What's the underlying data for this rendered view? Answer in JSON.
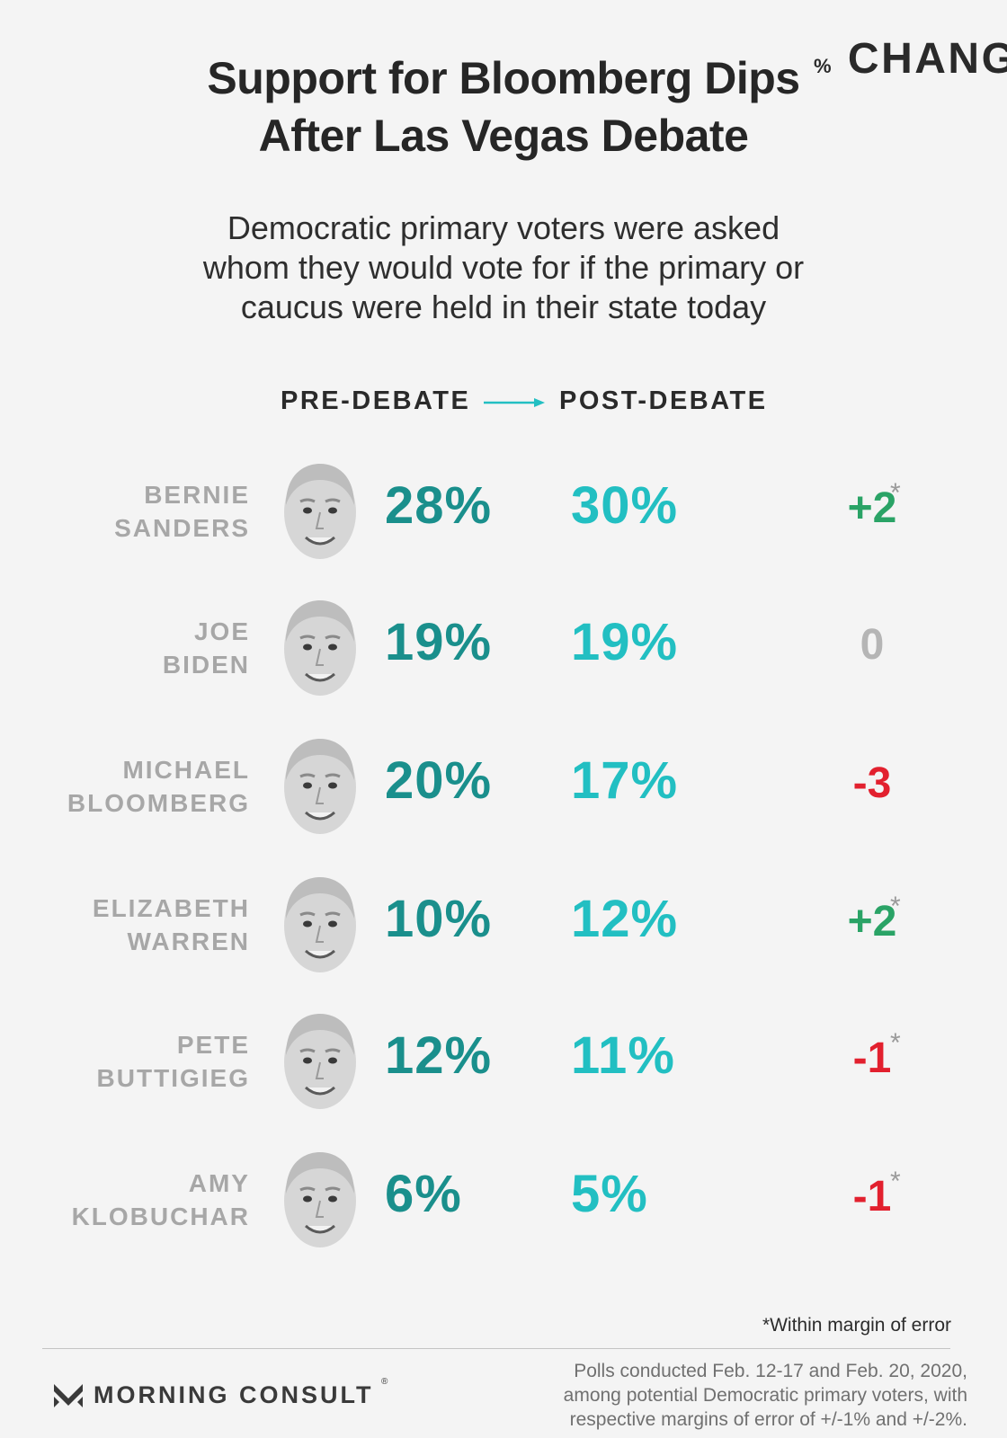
{
  "title_line1": "Support for Bloomberg Dips",
  "title_line2": "After Las Vegas Debate",
  "subtitle_line1": "Democratic primary voters were asked",
  "subtitle_line2": "whom they would vote for if the primary or",
  "subtitle_line3": "caucus were held in their state today",
  "headers": {
    "pre": "PRE-DEBATE",
    "post": "POST-DEBATE",
    "change_symbol": "%",
    "change": "CHANGE"
  },
  "colors": {
    "pre": "#1a8f8c",
    "post": "#22bfc2",
    "positive": "#2aa366",
    "negative": "#e2202e",
    "neutral": "#b5b5b5",
    "arrow": "#22bfc2"
  },
  "chart_data": {
    "type": "table",
    "title": "Support for Bloomberg Dips After Las Vegas Debate",
    "columns": [
      "PRE-DEBATE",
      "POST-DEBATE",
      "% CHANGE"
    ],
    "rows": [
      {
        "first": "BERNIE",
        "last": "SANDERS",
        "pre": "28%",
        "post": "30%",
        "change": "+2",
        "star": "*",
        "sign": "pos"
      },
      {
        "first": "JOE",
        "last": "BIDEN",
        "pre": "19%",
        "post": "19%",
        "change": "0",
        "star": "",
        "sign": "zero"
      },
      {
        "first": "MICHAEL",
        "last": "BLOOMBERG",
        "pre": "20%",
        "post": "17%",
        "change": "-3",
        "star": "",
        "sign": "neg"
      },
      {
        "first": "ELIZABETH",
        "last": "WARREN",
        "pre": "10%",
        "post": "12%",
        "change": "+2",
        "star": "*",
        "sign": "pos"
      },
      {
        "first": "PETE",
        "last": "BUTTIGIEG",
        "pre": "12%",
        "post": "11%",
        "change": "-1",
        "star": "*",
        "sign": "neg"
      },
      {
        "first": "AMY",
        "last": "KLOBUCHAR",
        "pre": "6%",
        "post": "5%",
        "change": "-1",
        "star": "*",
        "sign": "neg"
      }
    ]
  },
  "footnote": "*Within margin of error",
  "brand": "MORNING CONSULT",
  "brand_mark": "®",
  "source_line1": "Polls conducted Feb. 12-17 and Feb. 20, 2020,",
  "source_line2": "among potential Democratic primary voters, with",
  "source_line3": "respective margins of error of +/-1% and +/-2%."
}
